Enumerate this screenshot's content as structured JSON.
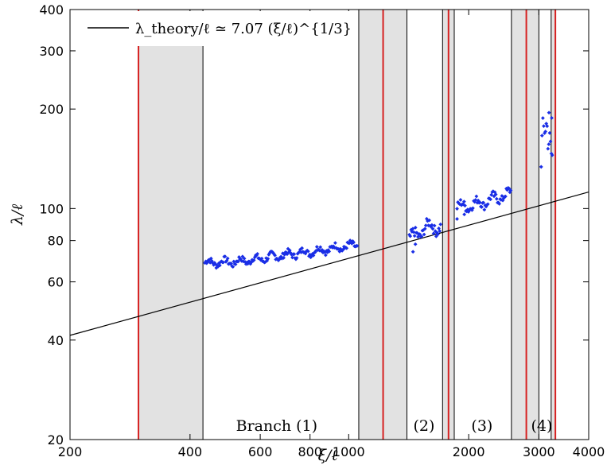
{
  "chart_data": {
    "type": "scatter",
    "xscale": "log",
    "yscale": "log",
    "xlim": [
      200,
      4000
    ],
    "ylim": [
      20,
      400
    ],
    "xlabel": "ξ/ℓ",
    "ylabel": "λ/ℓ",
    "xticks": [
      200,
      400,
      600,
      800,
      1000,
      2000,
      3000,
      4000
    ],
    "xtick_labels": [
      "200",
      "400",
      "600",
      "800",
      "1000",
      "2000",
      "3000",
      "4000"
    ],
    "yticks": [
      20,
      40,
      60,
      80,
      100,
      200,
      300,
      400
    ],
    "ytick_labels": [
      "20",
      "40",
      "60",
      "80",
      "100",
      "200",
      "300",
      "400"
    ],
    "grid": false,
    "legend": {
      "position": "top-left",
      "entries": [
        {
          "label": "λ_theory/ℓ ≃ 7.07 (ξ/ℓ)^{1/3}",
          "color": "#000000",
          "style": "line"
        }
      ]
    },
    "theory_line": {
      "name": "λ_theory/ℓ ≃ 7.07 (ξ/ℓ)^{1/3}",
      "coefficient": 7.07,
      "exponent": 0.3333,
      "color": "#000000"
    },
    "shaded_bands": [
      {
        "x": [
          297,
          431
        ]
      },
      {
        "x": [
          1060,
          1400
        ]
      },
      {
        "x": [
          1720,
          1840
        ]
      },
      {
        "x": [
          2560,
          3000
        ]
      },
      {
        "x": [
          3220,
          3300
        ]
      }
    ],
    "band_boundary_lines": {
      "color": "#000000",
      "x": [
        431,
        1060,
        1400,
        1720,
        1840,
        2560,
        3000,
        3220
      ]
    },
    "red_lines": {
      "color": "#d62020",
      "x": [
        297,
        1220,
        1780,
        2790,
        3300
      ]
    },
    "branch_labels": [
      {
        "text": "Branch (1)",
        "x": 660,
        "y": 22
      },
      {
        "text": "(2)",
        "x": 1545,
        "y": 22
      },
      {
        "text": "(3)",
        "x": 2160,
        "y": 22
      },
      {
        "text": "(4)",
        "x": 3050,
        "y": 22
      }
    ],
    "series": [
      {
        "color": "#1a2ee6",
        "marker": "diamond",
        "segments": [
          {
            "x_range": [
              436,
              1050
            ],
            "anchors": [
              [
                436,
                68.5
              ],
              [
                520,
                69
              ],
              [
                600,
                70.5
              ],
              [
                700,
                72.5
              ],
              [
                800,
                74
              ],
              [
                1000,
                77
              ]
            ],
            "jitter": 0.018
          },
          {
            "x_range": [
              1420,
              1700
            ],
            "anchors": [
              [
                1420,
                81
              ],
              [
                1500,
                84
              ],
              [
                1560,
                88
              ],
              [
                1700,
                88
              ]
            ],
            "jitter": 0.03
          },
          {
            "x_range": [
              1870,
              2550
            ],
            "anchors": [
              [
                1870,
                101
              ],
              [
                2000,
                102
              ],
              [
                2200,
                105
              ],
              [
                2550,
                111
              ]
            ],
            "jitter": 0.025
          },
          {
            "x_range": [
              3040,
              3240
            ],
            "anchors": [
              [
                3040,
                148
              ],
              [
                3150,
                160
              ],
              [
                3240,
                165
              ]
            ],
            "jitter": 0.12
          }
        ],
        "outliers": [
          [
            1450,
            74
          ],
          [
            1470,
            78
          ],
          [
            1870,
            93
          ],
          [
            1950,
            96
          ],
          [
            3180,
            195
          ],
          [
            3230,
            188
          ]
        ]
      }
    ]
  }
}
